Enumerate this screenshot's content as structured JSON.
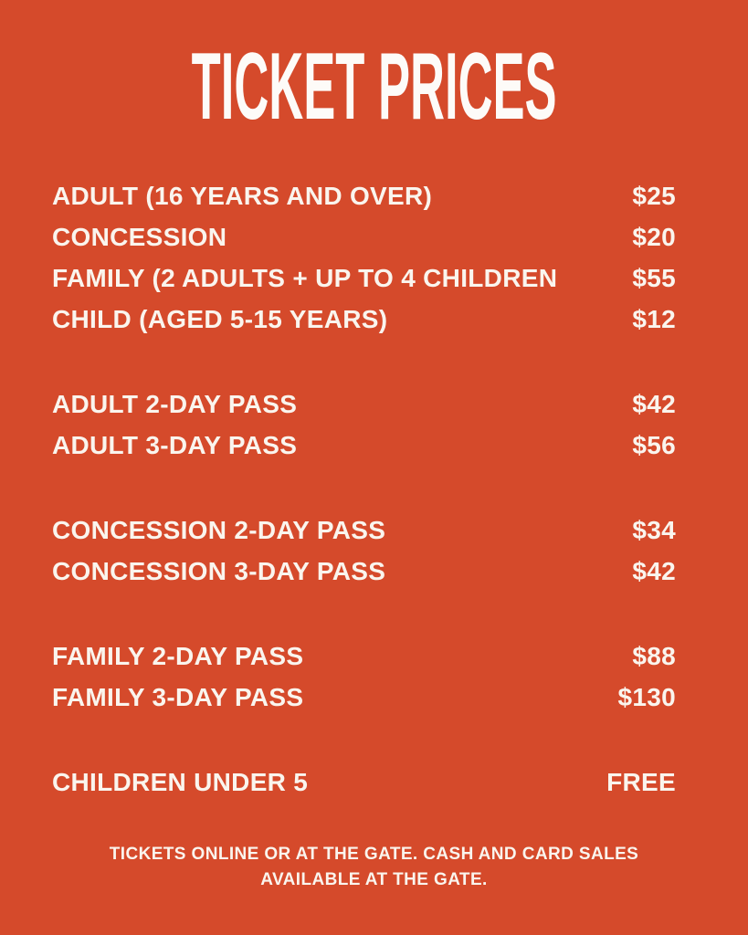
{
  "page": {
    "background_color": "#D54A2B",
    "text_color": "#FAF5EE",
    "title": "TICKET PRICES"
  },
  "groups": [
    {
      "rows": [
        {
          "label": "ADULT (16 YEARS AND OVER)",
          "price": "$25"
        },
        {
          "label": "CONCESSION",
          "price": "$20"
        },
        {
          "label": "FAMILY (2 ADULTS + UP TO 4 CHILDREN",
          "price": "$55"
        },
        {
          "label": "CHILD (AGED 5-15 YEARS)",
          "price": "$12"
        }
      ]
    },
    {
      "rows": [
        {
          "label": "ADULT 2-DAY PASS",
          "price": "$42"
        },
        {
          "label": "ADULT 3-DAY PASS",
          "price": "$56"
        }
      ]
    },
    {
      "rows": [
        {
          "label": "CONCESSION 2-DAY PASS",
          "price": "$34"
        },
        {
          "label": "CONCESSION 3-DAY PASS",
          "price": "$42"
        }
      ]
    },
    {
      "rows": [
        {
          "label": "FAMILY 2-DAY PASS",
          "price": "$88"
        },
        {
          "label": "FAMILY 3-DAY PASS",
          "price": "$130"
        }
      ]
    },
    {
      "rows": [
        {
          "label": "CHILDREN UNDER 5",
          "price": "FREE"
        }
      ]
    }
  ],
  "footer": {
    "line1": "TICKETS ONLINE OR AT THE GATE. CASH AND CARD SALES",
    "line2": "AVAILABLE AT THE GATE."
  }
}
